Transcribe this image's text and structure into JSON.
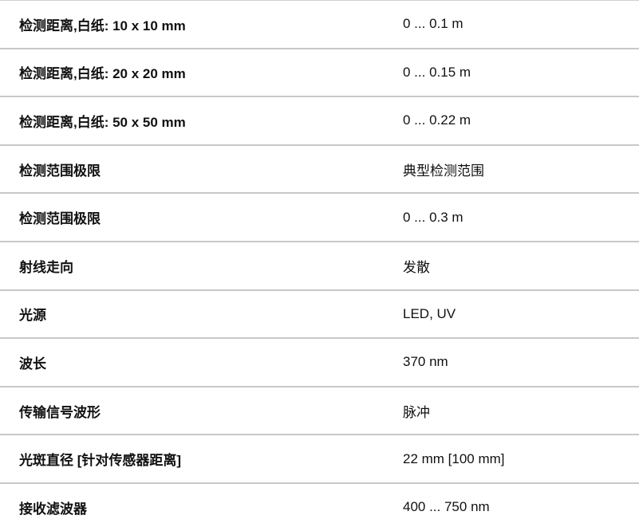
{
  "specs": [
    {
      "label": "检测距离,白纸: 10 x 10 mm",
      "value": "0 ... 0.1 m"
    },
    {
      "label": "检测距离,白纸: 20 x 20 mm",
      "value": "0 ... 0.15 m"
    },
    {
      "label": "检测距离,白纸: 50 x 50 mm",
      "value": "0 ... 0.22 m"
    },
    {
      "label": "检测范围极限",
      "value": "典型检测范围"
    },
    {
      "label": "检测范围极限",
      "value": "0 ... 0.3 m"
    },
    {
      "label": "射线走向",
      "value": "发散"
    },
    {
      "label": "光源",
      "value": "LED, UV"
    },
    {
      "label": "波长",
      "value": "370 nm"
    },
    {
      "label": "传输信号波形",
      "value": "脉冲"
    },
    {
      "label": "光斑直径 [针对传感器距离]",
      "value": "22 mm [100 mm]"
    },
    {
      "label": "接收滤波器",
      "value": "400 ... 750 nm"
    }
  ]
}
